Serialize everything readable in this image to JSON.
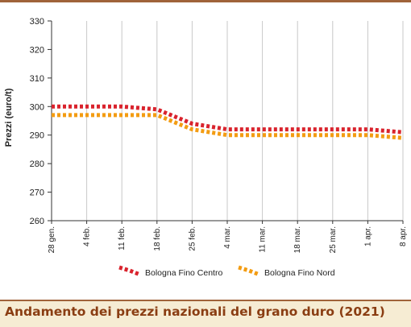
{
  "caption": "Andamento dei prezzi nazionali del grano duro (2021)",
  "colors": {
    "frame_accent": "#a0633a",
    "caption_bg": "#f6ecd3",
    "caption_text": "#8a3d12",
    "grid": "#c8c8c8"
  },
  "chart_data": {
    "type": "line",
    "ylabel": "Prezzi (euro/t)",
    "ylim": [
      260,
      330
    ],
    "yticks": [
      260,
      270,
      280,
      290,
      300,
      310,
      320,
      330
    ],
    "categories": [
      "28 gen.",
      "4 feb.",
      "11 feb.",
      "18 feb.",
      "25 feb.",
      "4 mar.",
      "11 mar.",
      "18 mar.",
      "25 mar.",
      "1 apr.",
      "8 apr."
    ],
    "grid": "vertical lines at each date, horizontal ticks only",
    "legend_position": "bottom-center",
    "series": [
      {
        "name": "Bologna Fino Centro",
        "color": "#d9232d",
        "values": [
          300,
          300,
          300,
          299,
          294,
          292,
          292,
          292,
          292,
          292,
          291
        ]
      },
      {
        "name": "Bologna Fino Nord",
        "color": "#f39c12",
        "values": [
          297,
          297,
          297,
          297,
          292,
          290,
          290,
          290,
          290,
          290,
          289
        ]
      }
    ]
  }
}
